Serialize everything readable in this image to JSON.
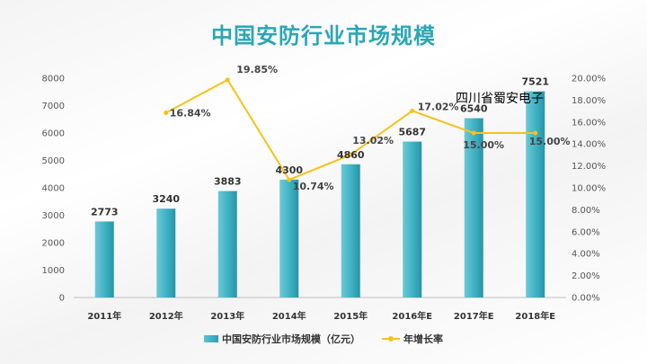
{
  "title": "中国安防行业市场规模",
  "overlay_text": "四川省蜀安电子",
  "legend": {
    "bar_name": "中国安防行业市场规模（亿元）",
    "line_name": "年增长率"
  },
  "colors": {
    "bar": "#3aaec0",
    "line": "#f6c21b",
    "title": "#2aa6b6"
  },
  "chart_data": {
    "type": "bar",
    "categories": [
      "2011年",
      "2012年",
      "2013年",
      "2014年",
      "2015年",
      "2016年E",
      "2017年E",
      "2018年E"
    ],
    "series": [
      {
        "name": "中国安防行业市场规模（亿元）",
        "type": "bar",
        "axis": "left",
        "values": [
          2773,
          3240,
          3883,
          4300,
          4860,
          5687,
          6540,
          7521
        ],
        "labels": [
          "2773",
          "3240",
          "3883",
          "4300",
          "4860",
          "5687",
          "6540",
          "7521"
        ]
      },
      {
        "name": "年增长率",
        "type": "line",
        "axis": "right",
        "values": [
          null,
          16.84,
          19.85,
          10.74,
          13.02,
          17.02,
          15.0,
          15.0
        ],
        "labels": [
          "",
          "16.84%",
          "19.85%",
          "10.74%",
          "13.02%",
          "17.02%",
          "15.00%",
          "15.00%"
        ]
      }
    ],
    "ylim": [
      0,
      8000
    ],
    "yticks": [
      "0",
      "1000",
      "2000",
      "3000",
      "4000",
      "5000",
      "6000",
      "7000",
      "8000"
    ],
    "y2lim": [
      0,
      20
    ],
    "y2ticks": [
      "0.00%",
      "2.00%",
      "4.00%",
      "6.00%",
      "8.00%",
      "10.00%",
      "12.00%",
      "14.00%",
      "16.00%",
      "18.00%",
      "20.00%"
    ],
    "legend_position": "bottom",
    "grid": false
  }
}
